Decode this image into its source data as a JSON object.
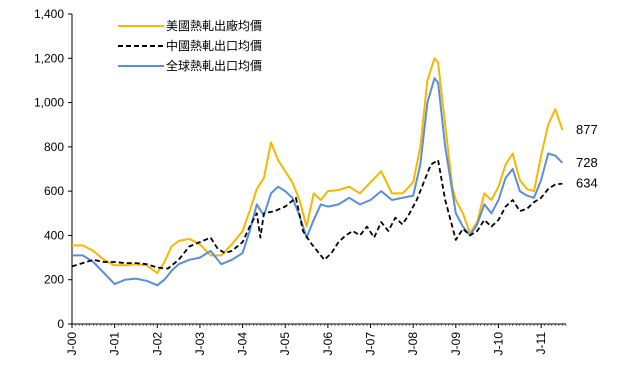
{
  "chart_data": {
    "type": "line",
    "title": "",
    "xlabel": "",
    "ylabel": "",
    "ylim": [
      0,
      1400
    ],
    "yticks": [
      "0",
      "200",
      "400",
      "600",
      "800",
      "1,000",
      "1,200",
      "1,400"
    ],
    "year_ticks": [
      "J-00",
      "J-01",
      "J-02",
      "J-03",
      "J-04",
      "J-05",
      "J-06",
      "J-07",
      "J-08",
      "J-09",
      "J-10",
      "J-11"
    ],
    "grid": "none",
    "legend_position": "top-left",
    "end_labels": [
      "877",
      "728",
      "634"
    ],
    "series": [
      {
        "name": "美國熱軋出廠均價",
        "color": "#F5B800",
        "dash": "solid",
        "points": [
          [
            "2000-01",
            355
          ],
          [
            "2000-04",
            355
          ],
          [
            "2000-07",
            330
          ],
          [
            "2000-10",
            290
          ],
          [
            "2001-01",
            265
          ],
          [
            "2001-04",
            265
          ],
          [
            "2001-07",
            270
          ],
          [
            "2001-10",
            265
          ],
          [
            "2002-01",
            230
          ],
          [
            "2002-03",
            280
          ],
          [
            "2002-05",
            350
          ],
          [
            "2002-07",
            375
          ],
          [
            "2002-10",
            385
          ],
          [
            "2003-01",
            360
          ],
          [
            "2003-04",
            310
          ],
          [
            "2003-07",
            310
          ],
          [
            "2003-10",
            360
          ],
          [
            "2004-01",
            420
          ],
          [
            "2004-03",
            510
          ],
          [
            "2004-05",
            610
          ],
          [
            "2004-07",
            660
          ],
          [
            "2004-09",
            820
          ],
          [
            "2004-11",
            740
          ],
          [
            "2005-01",
            690
          ],
          [
            "2005-03",
            640
          ],
          [
            "2005-05",
            560
          ],
          [
            "2005-07",
            440
          ],
          [
            "2005-09",
            590
          ],
          [
            "2005-11",
            560
          ],
          [
            "2006-01",
            600
          ],
          [
            "2006-04",
            605
          ],
          [
            "2006-07",
            620
          ],
          [
            "2006-10",
            590
          ],
          [
            "2007-01",
            640
          ],
          [
            "2007-04",
            690
          ],
          [
            "2007-07",
            590
          ],
          [
            "2007-10",
            590
          ],
          [
            "2008-01",
            640
          ],
          [
            "2008-03",
            800
          ],
          [
            "2008-05",
            1100
          ],
          [
            "2008-07",
            1200
          ],
          [
            "2008-08",
            1180
          ],
          [
            "2008-10",
            900
          ],
          [
            "2008-12",
            620
          ],
          [
            "2009-01",
            560
          ],
          [
            "2009-03",
            500
          ],
          [
            "2009-05",
            410
          ],
          [
            "2009-07",
            460
          ],
          [
            "2009-09",
            590
          ],
          [
            "2009-11",
            560
          ],
          [
            "2010-01",
            620
          ],
          [
            "2010-03",
            720
          ],
          [
            "2010-05",
            770
          ],
          [
            "2010-07",
            650
          ],
          [
            "2010-09",
            610
          ],
          [
            "2010-11",
            600
          ],
          [
            "2011-01",
            760
          ],
          [
            "2011-03",
            900
          ],
          [
            "2011-05",
            970
          ],
          [
            "2011-07",
            877
          ]
        ]
      },
      {
        "name": "中國熱軋出口均價",
        "color": "#000000",
        "dash": "dashed",
        "points": [
          [
            "2000-01",
            260
          ],
          [
            "2000-04",
            275
          ],
          [
            "2000-07",
            290
          ],
          [
            "2000-10",
            280
          ],
          [
            "2001-01",
            280
          ],
          [
            "2001-04",
            275
          ],
          [
            "2001-07",
            275
          ],
          [
            "2001-10",
            270
          ],
          [
            "2002-01",
            255
          ],
          [
            "2002-04",
            250
          ],
          [
            "2002-07",
            290
          ],
          [
            "2002-10",
            350
          ],
          [
            "2003-01",
            370
          ],
          [
            "2003-04",
            390
          ],
          [
            "2003-06",
            340
          ],
          [
            "2003-08",
            320
          ],
          [
            "2003-10",
            330
          ],
          [
            "2004-01",
            370
          ],
          [
            "2004-03",
            440
          ],
          [
            "2004-05",
            500
          ],
          [
            "2004-06",
            390
          ],
          [
            "2004-07",
            500
          ],
          [
            "2004-10",
            510
          ],
          [
            "2005-01",
            530
          ],
          [
            "2005-04",
            570
          ],
          [
            "2005-06",
            420
          ],
          [
            "2005-08",
            370
          ],
          [
            "2005-10",
            330
          ],
          [
            "2005-12",
            290
          ],
          [
            "2006-02",
            320
          ],
          [
            "2006-04",
            370
          ],
          [
            "2006-06",
            400
          ],
          [
            "2006-08",
            420
          ],
          [
            "2006-10",
            400
          ],
          [
            "2006-12",
            440
          ],
          [
            "2007-02",
            390
          ],
          [
            "2007-04",
            460
          ],
          [
            "2007-06",
            420
          ],
          [
            "2007-08",
            480
          ],
          [
            "2007-10",
            450
          ],
          [
            "2007-12",
            500
          ],
          [
            "2008-02",
            560
          ],
          [
            "2008-04",
            640
          ],
          [
            "2008-06",
            720
          ],
          [
            "2008-08",
            740
          ],
          [
            "2008-10",
            560
          ],
          [
            "2008-12",
            440
          ],
          [
            "2009-01",
            380
          ],
          [
            "2009-03",
            430
          ],
          [
            "2009-05",
            400
          ],
          [
            "2009-07",
            420
          ],
          [
            "2009-09",
            470
          ],
          [
            "2009-11",
            440
          ],
          [
            "2010-01",
            470
          ],
          [
            "2010-03",
            530
          ],
          [
            "2010-05",
            560
          ],
          [
            "2010-07",
            510
          ],
          [
            "2010-09",
            520
          ],
          [
            "2010-11",
            550
          ],
          [
            "2011-01",
            570
          ],
          [
            "2011-03",
            610
          ],
          [
            "2011-05",
            630
          ],
          [
            "2011-07",
            634
          ]
        ]
      },
      {
        "name": "全球熱軋出口均價",
        "color": "#5B8ED6",
        "dash": "solid",
        "points": [
          [
            "2000-01",
            310
          ],
          [
            "2000-04",
            310
          ],
          [
            "2000-07",
            280
          ],
          [
            "2000-10",
            230
          ],
          [
            "2001-01",
            180
          ],
          [
            "2001-04",
            200
          ],
          [
            "2001-07",
            205
          ],
          [
            "2001-10",
            195
          ],
          [
            "2002-01",
            175
          ],
          [
            "2002-03",
            200
          ],
          [
            "2002-05",
            240
          ],
          [
            "2002-07",
            270
          ],
          [
            "2002-10",
            290
          ],
          [
            "2003-01",
            300
          ],
          [
            "2003-04",
            330
          ],
          [
            "2003-07",
            270
          ],
          [
            "2003-10",
            290
          ],
          [
            "2004-01",
            320
          ],
          [
            "2004-03",
            420
          ],
          [
            "2004-05",
            540
          ],
          [
            "2004-07",
            490
          ],
          [
            "2004-09",
            590
          ],
          [
            "2004-11",
            620
          ],
          [
            "2005-01",
            600
          ],
          [
            "2005-03",
            570
          ],
          [
            "2005-05",
            490
          ],
          [
            "2005-07",
            390
          ],
          [
            "2005-09",
            470
          ],
          [
            "2005-11",
            540
          ],
          [
            "2006-01",
            530
          ],
          [
            "2006-04",
            540
          ],
          [
            "2006-07",
            570
          ],
          [
            "2006-10",
            540
          ],
          [
            "2007-01",
            560
          ],
          [
            "2007-04",
            600
          ],
          [
            "2007-07",
            560
          ],
          [
            "2007-10",
            570
          ],
          [
            "2008-01",
            580
          ],
          [
            "2008-03",
            720
          ],
          [
            "2008-05",
            1000
          ],
          [
            "2008-07",
            1110
          ],
          [
            "2008-08",
            1090
          ],
          [
            "2008-10",
            800
          ],
          [
            "2008-12",
            600
          ],
          [
            "2009-01",
            500
          ],
          [
            "2009-03",
            440
          ],
          [
            "2009-05",
            400
          ],
          [
            "2009-07",
            450
          ],
          [
            "2009-09",
            540
          ],
          [
            "2009-11",
            500
          ],
          [
            "2010-01",
            560
          ],
          [
            "2010-03",
            660
          ],
          [
            "2010-05",
            700
          ],
          [
            "2010-07",
            600
          ],
          [
            "2010-09",
            580
          ],
          [
            "2010-11",
            570
          ],
          [
            "2011-01",
            650
          ],
          [
            "2011-03",
            770
          ],
          [
            "2011-05",
            760
          ],
          [
            "2011-07",
            728
          ]
        ]
      }
    ]
  }
}
